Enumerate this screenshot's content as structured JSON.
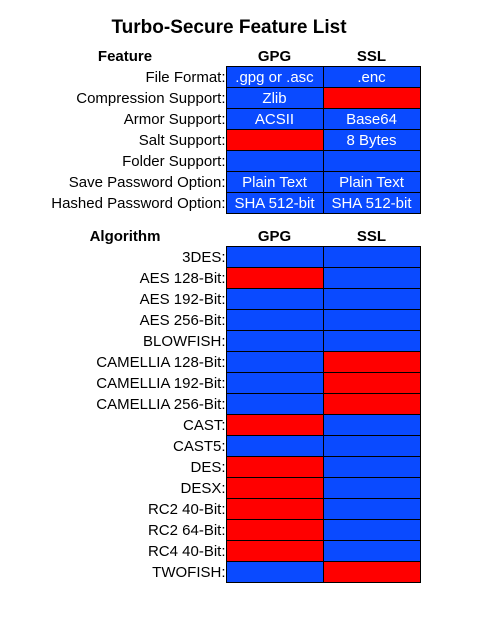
{
  "title": "Turbo-Secure Feature List",
  "colors": {
    "supported": "#0a4aff",
    "unsupported": "#ff0000",
    "grid": "#000000",
    "cell_text": "#ffffff"
  },
  "features": {
    "headers": [
      "Feature",
      "GPG",
      "SSL"
    ],
    "rows": [
      {
        "label": "File Format:",
        "gpg": ".gpg or .asc",
        "ssl": ".enc",
        "gpg_supported": true,
        "ssl_supported": true
      },
      {
        "label": "Compression Support:",
        "gpg": "Zlib",
        "ssl": "",
        "gpg_supported": true,
        "ssl_supported": false
      },
      {
        "label": "Armor Support:",
        "gpg": "ACSII",
        "ssl": "Base64",
        "gpg_supported": true,
        "ssl_supported": true
      },
      {
        "label": "Salt Support:",
        "gpg": "",
        "ssl": "8 Bytes",
        "gpg_supported": false,
        "ssl_supported": true
      },
      {
        "label": "Folder Support:",
        "gpg": "",
        "ssl": "",
        "gpg_supported": true,
        "ssl_supported": true
      },
      {
        "label": "Save Password Option:",
        "gpg": "Plain Text",
        "ssl": "Plain Text",
        "gpg_supported": true,
        "ssl_supported": true
      },
      {
        "label": "Hashed Password Option:",
        "gpg": "SHA 512-bit",
        "ssl": "SHA 512-bit",
        "gpg_supported": true,
        "ssl_supported": true
      }
    ]
  },
  "algorithms": {
    "headers": [
      "Algorithm",
      "GPG",
      "SSL"
    ],
    "rows": [
      {
        "label": "3DES:",
        "gpg_supported": true,
        "ssl_supported": true
      },
      {
        "label": "AES 128-Bit:",
        "gpg_supported": false,
        "ssl_supported": true
      },
      {
        "label": "AES 192-Bit:",
        "gpg_supported": true,
        "ssl_supported": true
      },
      {
        "label": "AES 256-Bit:",
        "gpg_supported": true,
        "ssl_supported": true
      },
      {
        "label": "BLOWFISH:",
        "gpg_supported": true,
        "ssl_supported": true
      },
      {
        "label": "CAMELLIA 128-Bit:",
        "gpg_supported": true,
        "ssl_supported": false
      },
      {
        "label": "CAMELLIA 192-Bit:",
        "gpg_supported": true,
        "ssl_supported": false
      },
      {
        "label": "CAMELLIA 256-Bit:",
        "gpg_supported": true,
        "ssl_supported": false
      },
      {
        "label": "CAST:",
        "gpg_supported": false,
        "ssl_supported": true
      },
      {
        "label": "CAST5:",
        "gpg_supported": true,
        "ssl_supported": true
      },
      {
        "label": "DES:",
        "gpg_supported": false,
        "ssl_supported": true
      },
      {
        "label": "DESX:",
        "gpg_supported": false,
        "ssl_supported": true
      },
      {
        "label": "RC2 40-Bit:",
        "gpg_supported": false,
        "ssl_supported": true
      },
      {
        "label": "RC2 64-Bit:",
        "gpg_supported": false,
        "ssl_supported": true
      },
      {
        "label": "RC4 40-Bit:",
        "gpg_supported": false,
        "ssl_supported": true
      },
      {
        "label": "TWOFISH:",
        "gpg_supported": true,
        "ssl_supported": false
      }
    ]
  }
}
